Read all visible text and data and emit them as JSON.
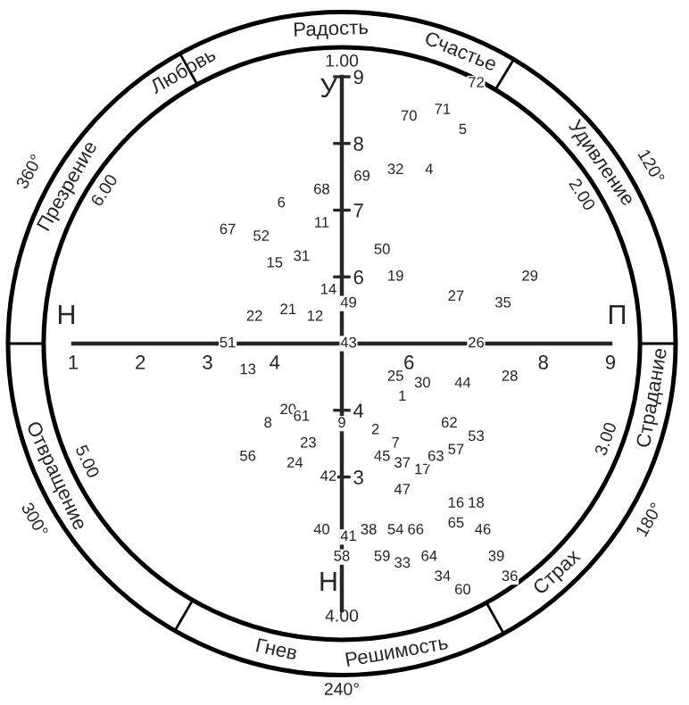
{
  "chart_data": {
    "type": "scatter",
    "grid": false,
    "xlim": [
      1,
      9
    ],
    "ylim": [
      1,
      9
    ],
    "xticks": [
      1,
      2,
      3,
      4,
      6,
      8,
      9
    ],
    "yticks": [
      3,
      4,
      6,
      7,
      8,
      9
    ],
    "annotations": [
      "Любовь",
      "Радость",
      "Счастье",
      "Удивление",
      "Страдание",
      "Страх",
      "Решимость",
      "Гнев",
      "Отвращение",
      "Презрение",
      "360°",
      "120°",
      "180°",
      "240°",
      "300°",
      "1.00",
      "2.00",
      "3.00",
      "4.00",
      "5.00",
      "6.00",
      "У",
      "Н",
      "Н",
      "П",
      {
        "text": "68",
        "x": 4.7,
        "y": 7.3
      },
      {
        "text": "6",
        "x": 4.1,
        "y": 7.1
      },
      {
        "text": "11",
        "x": 4.7,
        "y": 6.8
      },
      {
        "text": "67",
        "x": 3.3,
        "y": 6.7
      },
      {
        "text": "52",
        "x": 3.8,
        "y": 6.6
      },
      {
        "text": "31",
        "x": 4.4,
        "y": 6.3
      },
      {
        "text": "15",
        "x": 4.0,
        "y": 6.2
      },
      {
        "text": "14",
        "x": 4.8,
        "y": 5.8
      },
      {
        "text": "49",
        "x": 5.1,
        "y": 5.6
      },
      {
        "text": "22",
        "x": 3.7,
        "y": 5.4
      },
      {
        "text": "21",
        "x": 4.2,
        "y": 5.5
      },
      {
        "text": "12",
        "x": 4.6,
        "y": 5.4
      },
      {
        "text": "51",
        "x": 3.3,
        "y": 5.0
      },
      {
        "text": "43",
        "x": 5.1,
        "y": 5.0
      },
      {
        "text": "72",
        "x": 7.0,
        "y": 8.9
      },
      {
        "text": "70",
        "x": 6.0,
        "y": 8.4
      },
      {
        "text": "71",
        "x": 6.5,
        "y": 8.5
      },
      {
        "text": "5",
        "x": 6.8,
        "y": 8.2
      },
      {
        "text": "32",
        "x": 5.8,
        "y": 7.6
      },
      {
        "text": "4",
        "x": 6.3,
        "y": 7.6
      },
      {
        "text": "69",
        "x": 5.3,
        "y": 7.5
      },
      {
        "text": "50",
        "x": 5.6,
        "y": 6.4
      },
      {
        "text": "19",
        "x": 5.8,
        "y": 6.0
      },
      {
        "text": "29",
        "x": 7.8,
        "y": 6.0
      },
      {
        "text": "27",
        "x": 6.7,
        "y": 5.7
      },
      {
        "text": "35",
        "x": 7.4,
        "y": 5.6
      },
      {
        "text": "26",
        "x": 7.0,
        "y": 5.0
      },
      {
        "text": "13",
        "x": 3.6,
        "y": 4.6
      },
      {
        "text": "20",
        "x": 4.2,
        "y": 4.0
      },
      {
        "text": "61",
        "x": 4.4,
        "y": 3.9
      },
      {
        "text": "8",
        "x": 3.9,
        "y": 3.8
      },
      {
        "text": "9",
        "x": 5.0,
        "y": 3.8
      },
      {
        "text": "23",
        "x": 4.5,
        "y": 3.5
      },
      {
        "text": "56",
        "x": 3.6,
        "y": 3.3
      },
      {
        "text": "24",
        "x": 4.3,
        "y": 3.2
      },
      {
        "text": "42",
        "x": 4.8,
        "y": 3.0
      },
      {
        "text": "40",
        "x": 4.7,
        "y": 2.2
      },
      {
        "text": "41",
        "x": 5.1,
        "y": 2.1
      },
      {
        "text": "58",
        "x": 5.0,
        "y": 1.8
      },
      {
        "text": "25",
        "x": 5.8,
        "y": 4.5
      },
      {
        "text": "30",
        "x": 6.2,
        "y": 4.4
      },
      {
        "text": "1",
        "x": 5.9,
        "y": 4.2
      },
      {
        "text": "44",
        "x": 6.8,
        "y": 4.4
      },
      {
        "text": "28",
        "x": 7.5,
        "y": 4.5
      },
      {
        "text": "2",
        "x": 5.5,
        "y": 3.7
      },
      {
        "text": "7",
        "x": 5.8,
        "y": 3.5
      },
      {
        "text": "45",
        "x": 5.6,
        "y": 3.3
      },
      {
        "text": "37",
        "x": 5.9,
        "y": 3.2
      },
      {
        "text": "17",
        "x": 6.2,
        "y": 3.1
      },
      {
        "text": "63",
        "x": 6.4,
        "y": 3.3
      },
      {
        "text": "57",
        "x": 6.7,
        "y": 3.4
      },
      {
        "text": "62",
        "x": 6.6,
        "y": 3.8
      },
      {
        "text": "53",
        "x": 7.0,
        "y": 3.6
      },
      {
        "text": "47",
        "x": 5.9,
        "y": 2.8
      },
      {
        "text": "16",
        "x": 6.7,
        "y": 2.6
      },
      {
        "text": "18",
        "x": 7.0,
        "y": 2.6
      },
      {
        "text": "65",
        "x": 6.7,
        "y": 2.3
      },
      {
        "text": "46",
        "x": 7.1,
        "y": 2.2
      },
      {
        "text": "38",
        "x": 5.4,
        "y": 2.2
      },
      {
        "text": "54",
        "x": 5.8,
        "y": 2.2
      },
      {
        "text": "66",
        "x": 6.1,
        "y": 2.2
      },
      {
        "text": "59",
        "x": 5.6,
        "y": 1.8
      },
      {
        "text": "33",
        "x": 5.9,
        "y": 1.7
      },
      {
        "text": "64",
        "x": 6.3,
        "y": 1.8
      },
      {
        "text": "34",
        "x": 6.5,
        "y": 1.5
      },
      {
        "text": "60",
        "x": 6.8,
        "y": 1.3
      },
      {
        "text": "39",
        "x": 7.3,
        "y": 1.8
      },
      {
        "text": "36",
        "x": 7.5,
        "y": 1.5
      }
    ]
  }
}
